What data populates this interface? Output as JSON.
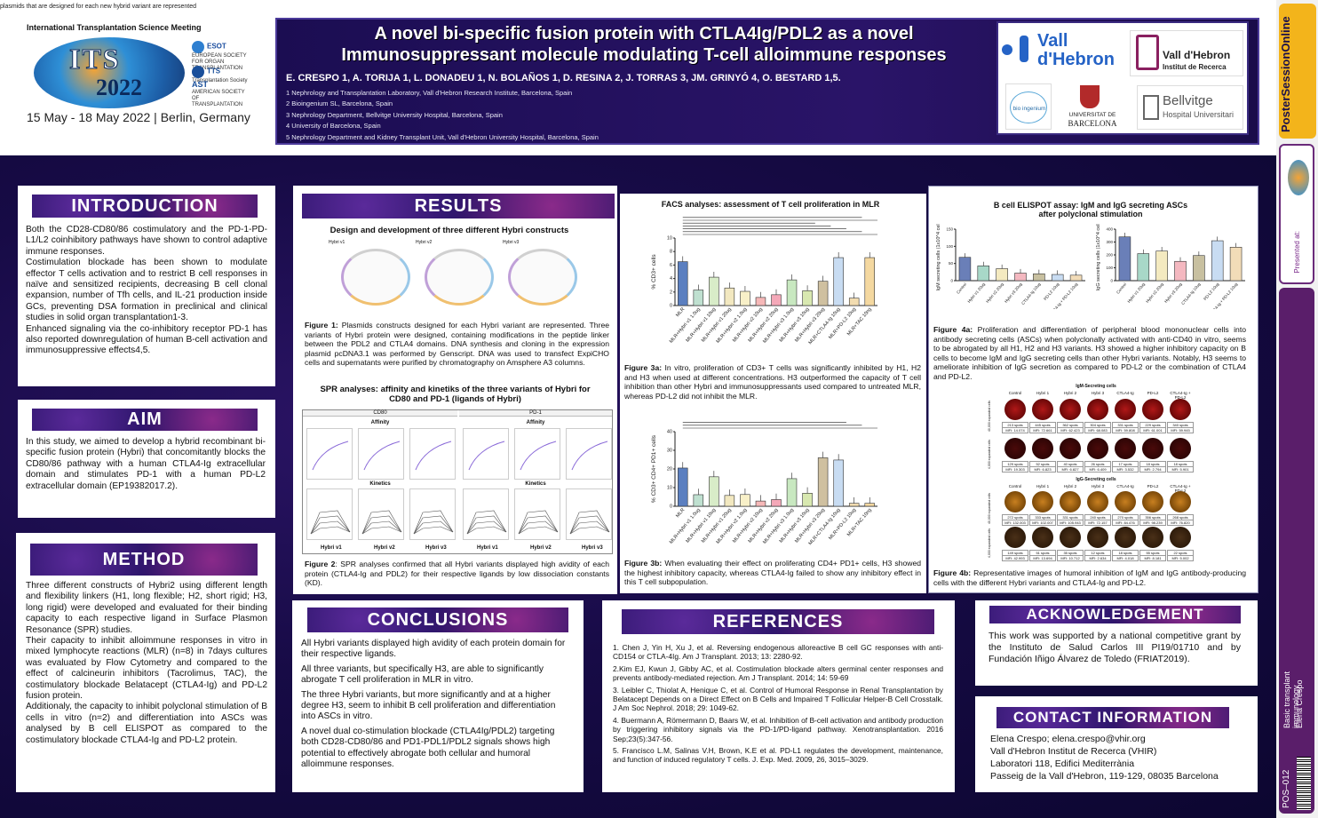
{
  "top_note": "plasmids that are designed for each new hybrid variant are represented",
  "conference": {
    "name": "International Transplantation Science Meeting",
    "logo_text": "ITS",
    "logo_year": "2022",
    "dates": "15 May - 18 May 2022 | Berlin, Germany",
    "societies": [
      "EUROPEAN SOCIETY FOR ORGAN TRANSPLANTATION",
      "Transplantation Society",
      "AMERICAN SOCIETY OF TRANSPLANTATION"
    ],
    "society_marks": [
      "ESOT",
      "TTS",
      "AST"
    ]
  },
  "poster": {
    "title_line1": "A novel bi-specific fusion protein with CTLA4Ig/PDL2 as a novel",
    "title_line2": "Immunosuppressant molecule modulating T-cell alloimmune responses",
    "authors": "E. CRESPO 1, A. TORIJA 1, L. DONADEU 1, N. BOLAÑOS 1, D. RESINA 2, J. TORRAS 3, JM. GRINYÓ 4, O. BESTARD 1,5.",
    "affiliations": [
      "1 Nephrology and Transplantation Laboratory, Vall d'Hebron Research Institute, Barcelona, Spain",
      "2 Bioingenium SL, Barcelona, Spain",
      "3 Nephrology Department, Bellvitge University Hospital, Barcelona, Spain",
      "4 University of Barcelona, Spain",
      "5 Nephrology Department and Kidney Transplant Unit, Vall d'Hebron University Hospital, Barcelona, Spain"
    ],
    "logos": {
      "vall_line1": "Vall",
      "vall_line2": "d'Hebron",
      "vhir_line1": "Vall d'Hebron",
      "vhir_line2": "Institut de Recerca",
      "bio": "bio ingenium",
      "ub_line1": "UNIVERSITAT DE",
      "ub_line2": "BARCELONA",
      "bellvitge_line1": "Bellvitge",
      "bellvitge_line2": "Hospital Universitari"
    }
  },
  "sidebar": {
    "brand": "PosterSessionOnline",
    "presented_at": "Presented at:",
    "topic": "Basic transplant immunology",
    "author": "Elena Crespo",
    "code": "POS–012"
  },
  "introduction": {
    "heading": "INTRODUCTION",
    "p1": "Both the CD28-CD80/86 costimulatory and the PD-1-PD-L1/L2 coinhibitory pathways have shown to control adaptive immune responses.",
    "p2": "Costimulation blockade has been shown to modulate effector T cells activation and to restrict B cell responses in naïve and sensitized recipients, decreasing B cell clonal expansion, number of Tfh cells, and IL-21 production inside GCs, preventing DSA formation in preclinical and clinical studies in solid organ transplantation1-3.",
    "p3": "Enhanced signaling via the co-inhibitory receptor PD-1 has also reported downregulation of human B-cell activation and immunosuppressive effects4,5."
  },
  "aim": {
    "heading": "AIM",
    "text": "In this study, we aimed to develop a hybrid recombinant bi-specific fusion protein (Hybri) that concomitantly blocks the CD80/86 pathway with a human CTLA4-Ig extracellular domain and stimulates PD-1 with a human PD-L2 extracellular domain (EP19382017.2)."
  },
  "method": {
    "heading": "METHOD",
    "p1": "Three different constructs of Hybri2 using different length and flexibility linkers (H1, long flexible; H2, short rigid; H3, long rigid) were developed and evaluated for their binding capacity to each respective ligand in Surface Plasmon Resonance (SPR) studies.",
    "p2": "Their capacity to inhibit alloimmune responses in vitro in mixed lymphocyte reactions (MLR) (n=8) in 7days cultures was evaluated by Flow Cytometry and compared to the effect of calcineurin inhibitors (Tacrolimus, TAC), the costimulatory blockade Belatacept (CTLA4-Ig) and PD-L2 fusion protein.",
    "p3": "Additionaly, the capacity to inhibit polyclonal stimulation of B cells in vitro (n=2) and differentiation into ASCs was analysed by B cell ELISPOT as compared to the costimulatory blockade CTLA4-Ig and PD-L2 protein."
  },
  "results": {
    "heading": "RESULTS",
    "fig1_title": "Design and development of three different Hybri constructs",
    "plasmid_labels": [
      "Hybri v1",
      "Hybri v2",
      "Hybri v3"
    ],
    "fig1_caption_label": "Figure 1:",
    "fig1_caption": "Plasmids constructs designed for each Hybri variant are represented. Three variants of Hybri protein were designed, containing modifications in the peptide linker between the PDL2 and CTLA4 domains. DNA synthesis and cloning in the expression plasmid pcDNA3.1 was performed by Genscript. DNA was used to transfect ExpiCHO cells and supernatants were purified by chromatography on Amsphere A3 columns.",
    "spr_title": "SPR analyses: affinity and kinetiks of the three variants of Hybri for CD80 and PD-1 (ligands of Hybri)",
    "spr_targets": [
      "CD80",
      "PD-1"
    ],
    "spr_rows": [
      "Affinity",
      "Kinetics"
    ],
    "spr_labels": [
      "Hybri v1",
      "Hybri v2",
      "Hybri v3",
      "Hybri v1",
      "Hybri v2",
      "Hybri v3"
    ],
    "fig2_caption_label": "Figure 2",
    "fig2_caption": ": SPR analyses confirmed that all Hybri variants displayed high avidity of each protein (CTLA4-Ig and PDL2) for their respective ligands by low dissociation constants (KD)."
  },
  "facs": {
    "title": "FACS analyses: assessment of T cell proliferation in MLR",
    "fig3a_label": "Figure 3a:",
    "fig3a_caption": "In vitro, proliferation of CD3+ T cells was significantly inhibited by H1, H2 and H3 when used at different concentrations. H3 outperformed the capacity of T cell inhibition than other Hybri and immunosuppressants used compared to untreated MLR, whereas PD-L2 did not inhibit the MLR.",
    "fig3b_label": "Figure 3b:",
    "fig3b_caption": "When evaluating their effect on proliferating CD4+ PD1+ cells, H3 showed the highest inhibitory capacity, whereas CTLA4-Ig failed to show any inhibitory effect in this T cell subpopulation."
  },
  "chart_data": [
    {
      "type": "bar",
      "ylabel": "% CD3+ cells",
      "ylim": [
        0,
        10
      ],
      "yticks": [
        0,
        2,
        4,
        6,
        8,
        10
      ],
      "categories": [
        "MLR",
        "MLR+Hybri v1 1.0ug",
        "MLR+Hybri v1 10ug",
        "MLR+Hybri v1 20ug",
        "MLR+Hybri v2 1.0ug",
        "MLR+Hybri v2 10ug",
        "MLR+Hybri v2 20ug",
        "MLR+Hybri v3 1.0ug",
        "MLR+Hybri v3 10ug",
        "MLR+Hybri v3 20ug",
        "MLR+CTLA4-Ig 10ug",
        "MLR+PD-L2 10ug",
        "MLR+TAC 10ng"
      ],
      "values": [
        6.5,
        2.3,
        4.2,
        2.6,
        2.1,
        1.2,
        1.6,
        3.8,
        2.2,
        3.6,
        7.1,
        1.1,
        7.1
      ],
      "colors": [
        "#5b7fc0",
        "#bfe0d0",
        "#d8ecc8",
        "#f2e8c0",
        "#f8f0c8",
        "#f6b8b8",
        "#f4a8b8",
        "#c8e8c0",
        "#d8e8b0",
        "#cfc0a0",
        "#c8dcf2",
        "#f2dcb0",
        "#f4d8a0"
      ]
    },
    {
      "type": "bar",
      "ylabel": "% CD3+ CD4+ PD1+ cells",
      "ylim": [
        0,
        40
      ],
      "yticks": [
        0,
        10,
        20,
        30,
        40
      ],
      "categories": [
        "MLR",
        "MLR+Hybri v1 1.0ug",
        "MLR+Hybri v1 10ug",
        "MLR+Hybri v1 20ug",
        "MLR+Hybri v2 1.0ug",
        "MLR+Hybri v2 10ug",
        "MLR+Hybri v2 20ug",
        "MLR+Hybri v3 1.0ug",
        "MLR+Hybri v3 10ug",
        "MLR+Hybri v3 20ug",
        "MLR+CTLA4-Ig 10ug",
        "MLR+PD-L2 10ug",
        "MLR+TAC 10ng"
      ],
      "values": [
        20.5,
        6.2,
        15.8,
        5.8,
        6.3,
        2.8,
        3.6,
        14.8,
        7.0,
        26.0,
        24.8,
        1.6,
        1.6
      ],
      "colors": [
        "#5b7fc0",
        "#bfe0d0",
        "#d8ecc8",
        "#f2e8c0",
        "#f8f0c8",
        "#f6b8b8",
        "#f4a8b8",
        "#c8e8c0",
        "#d8e8b0",
        "#cfc0a0",
        "#c8dcf2",
        "#f2dcb0",
        "#f4d8a0"
      ]
    },
    {
      "type": "bar",
      "ylabel": "IgM secreting cells (1x10^4 cells)",
      "ylim": [
        0,
        150
      ],
      "yticks": [
        0,
        50,
        100,
        150
      ],
      "categories": [
        "Control",
        "Hybri v1 20ug",
        "Hybri v2 20ug",
        "Hybri v3 20ug",
        "CTLA4-Ig 10ug",
        "PD-L2 10ug",
        "CTLA4-Ig + PD-L2 10ug"
      ],
      "values": [
        68,
        43,
        35,
        22,
        20,
        18,
        16
      ],
      "colors": [
        "#6a7fb8",
        "#a8d8c8",
        "#f4eac0",
        "#f4b8c0",
        "#c8c0a0",
        "#c8dcf2",
        "#f2dcb8"
      ]
    },
    {
      "type": "bar",
      "ylabel": "IgG secreting cells (1x10^4 cells)",
      "ylim": [
        0,
        400
      ],
      "yticks": [
        0,
        100,
        200,
        300,
        400
      ],
      "categories": [
        "Control",
        "Hybri v1 20ug",
        "Hybri v2 20ug",
        "Hybri v3 20ug",
        "CTLA4-Ig 10ug",
        "PD-L2 10ug",
        "CTLA4-Ig + PD-L2 10ug"
      ],
      "values": [
        340,
        210,
        230,
        150,
        195,
        310,
        260
      ],
      "colors": [
        "#6a7fb8",
        "#a8d8c8",
        "#f4eac0",
        "#f4b8c0",
        "#c8c0a0",
        "#c8dcf2",
        "#f2dcb8"
      ]
    }
  ],
  "elispot": {
    "title_line1": "B cell ELISPOT assay: IgM and IgG secreting ASCs",
    "title_line2": "after polyclonal stimulation",
    "fig4a_label": "Figure 4a:",
    "fig4a_caption": "Proliferation and differentiation of peripheral blood mononuclear cells into antibody secreting cells (ASCs) when polyclonally activated with anti-CD40 in vitro, seems to be abrogated by all H1, H2 and H3 variants. H3 showed a higher inhibitory capacity on B cells to become IgM and IgG secreting cells than other Hybri variants. Notably, H3 seems to ameliorate inhibition of IgG secretion as compared to PD-L2 or the combination of CTLA4 and PD-L2.",
    "igm_title": "IgM-Secreting cells",
    "igg_title": "IgG-Secreting cells",
    "col_labels": [
      "Control",
      "Hybri 1",
      "Hybri 2",
      "Hybri 3",
      "CTLA4-Ig",
      "PD-L2",
      "CTLA4-Ig + PD-L2"
    ],
    "igm_spots_1": [
      "213 spots",
      "445 spots",
      "362 spots",
      "304 spots",
      "331 spots",
      "229 spots",
      "340 spots"
    ],
    "igm_mfi_1": [
      "MFI: 14.074",
      "MFI: 72.661",
      "MFI: 62.423",
      "MFI: 68.083",
      "MFI: 59.808",
      "MFI: 61.001",
      "MFI: 59.945"
    ],
    "igm_spots_2": [
      "129 spots",
      "52 spots",
      "40 spots",
      "26 spots",
      "17 spots",
      "18 spots",
      "18 spots"
    ],
    "igm_mfi_2": [
      "MFI: 19.303",
      "MFI: 6.823",
      "MFI: 6.827",
      "MFI: 6.409",
      "MFI: 3.532",
      "MFI: 2.794",
      "MFI: 5.901"
    ],
    "igg_spots_1": [
      "272 spots",
      "333 spots",
      "331 spots",
      "240 spots",
      "270 spots",
      "356 spots",
      "268 spots"
    ],
    "igg_mfi_1": [
      "MFI: 132.003",
      "MFI: 102.007",
      "MFI: 105.943",
      "MFI: 72.157",
      "MFI: 84.476",
      "MFI: 98.239",
      "MFI: 76.820"
    ],
    "igg_spots_2": [
      "149 spots",
      "51 spots",
      "35 spots",
      "12 spots",
      "18 spots",
      "55 spots",
      "22 spots"
    ],
    "igg_mfi_2": [
      "MFI: 42.993",
      "MFI: 13.694",
      "MFI: 10.712",
      "MFI: 2.634",
      "MFI: 4.018",
      "MFI: 8.181",
      "MFI: 5.002"
    ],
    "row_labels": [
      "40,000 expanded cells",
      "4,000 expanded cells",
      "40,000 expanded cells",
      "4,000 expanded cells"
    ],
    "fig4b_label": "Figure 4b:",
    "fig4b_caption": "Representative images of humoral inhibition of IgM and IgG antibody-producing cells with the different Hybri variants and CTLA4-Ig and PD-L2."
  },
  "conclusions": {
    "heading": "CONCLUSIONS",
    "p1": "All Hybri variants displayed high avidity of each protein domain for their respective ligands.",
    "p2": "All three variants, but specifically H3, are able to significantly abrogate T cell proliferation in MLR in vitro.",
    "p3": "The three Hybri variants, but more significantly and at a higher degree H3, seem to inhibit B cell proliferation and differentiation into ASCs in vitro.",
    "p4": "A novel dual co-stimulation blockade (CTLA4Ig/PDL2) targeting both CD28-CD80/86 and PD1-PDL1/PDL2 signals shows high potential to effectively abrogate both cellular and humoral alloimmune responses."
  },
  "references": {
    "heading": "REFERENCES",
    "items": [
      "1. Chen J, Yin H, Xu J, et al. Reversing endogenous alloreactive B cell GC responses with anti-CD154 or CTLA-4Ig. Am J Transplant. 2013; 13: 2280-92.",
      "2.Kim EJ, Kwun J, Gibby AC, et al. Costimulation blockade alters germinal center responses and prevents antibody-mediated rejection. Am J Transplant. 2014; 14: 59-69",
      "3. Leibler C, Thiolat A, Henique C, et al. Control of Humoral Response in Renal Transplantation by Belatacept Depends on a Direct Effect on B Cells and Impaired T Follicular Helper-B Cell Crosstalk. J Am Soc Nephrol. 2018; 29: 1049-62.",
      "4. Buermann A, Römermann D, Baars W, et al. Inhibition of B-cell activation and antibody production by triggering inhibitory signals via the PD-1/PD-ligand pathway. Xenotransplantation. 2016 Sep;23(5):347-56.",
      "5. Francisco L.M, Salinas V.H, Brown, K.E et al. PD-L1 regulates the development, maintenance, and function of induced regulatory T cells. J. Exp. Med. 2009, 26, 3015–3029."
    ]
  },
  "acknowledgement": {
    "heading": "ACKNOWLEDGEMENT",
    "text": "This work was supported by a national competitive grant by the Instituto de Salud Carlos III PI19/01710 and by Fundación Iñigo Álvarez de Toledo (FRIAT2019)."
  },
  "contact": {
    "heading": "CONTACT INFORMATION",
    "lines": [
      "Elena Crespo; elena.crespo@vhir.org",
      "Vall d'Hebron Institut de Recerca (VHIR)",
      "Laboratori 118, Edifici Mediterrània",
      "Passeig de la Vall d'Hebron, 119-129, 08035 Barcelona"
    ]
  }
}
